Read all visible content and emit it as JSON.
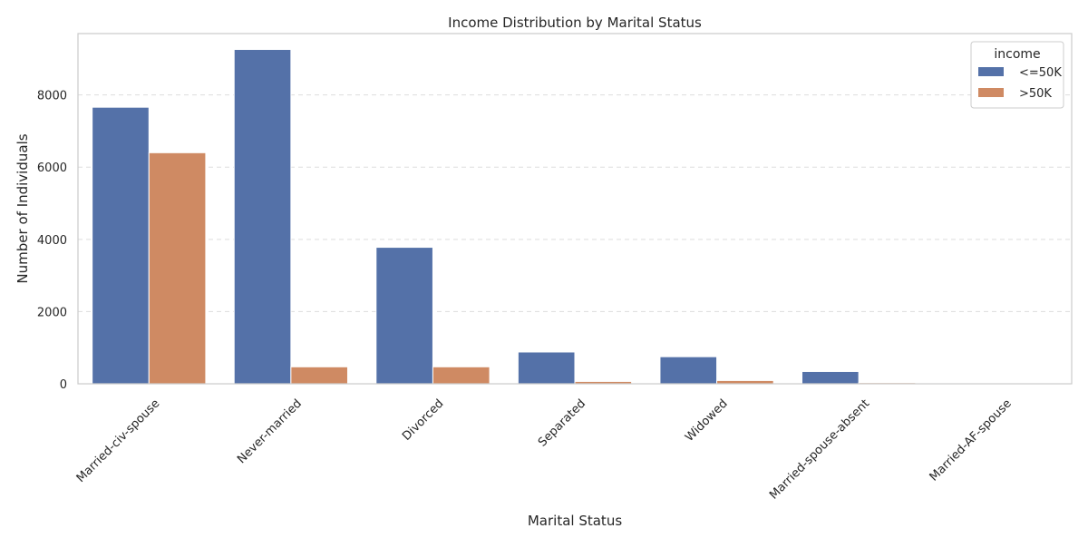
{
  "chart_data": {
    "type": "bar",
    "title": "Income Distribution by Marital Status",
    "xlabel": "Marital Status",
    "ylabel": "Number of Individuals",
    "categories": [
      "Married-civ-spouse",
      "Never-married",
      "Divorced",
      "Separated",
      "Widowed",
      "Married-spouse-absent",
      "Married-AF-spouse"
    ],
    "series": [
      {
        "name": "<=50K",
        "color": "#5471a8",
        "values": [
          7660,
          9260,
          3780,
          880,
          750,
          340,
          15
        ]
      },
      {
        "name": ">50K",
        "color": "#cf8a63",
        "values": [
          6400,
          470,
          470,
          65,
          90,
          30,
          8
        ]
      }
    ],
    "ylim": [
      0,
      9700
    ],
    "yticks": [
      0,
      2000,
      4000,
      6000,
      8000
    ],
    "grid": "y-dashed",
    "legend": {
      "title": "income",
      "placement": "top-right"
    }
  }
}
